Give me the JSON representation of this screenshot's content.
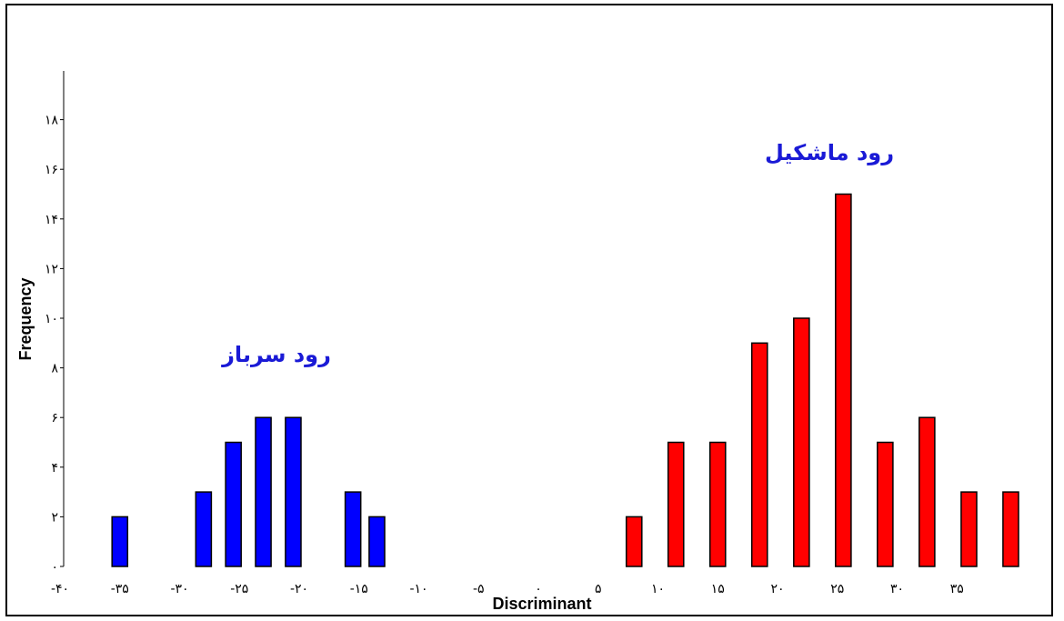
{
  "chart_data": {
    "type": "bar",
    "xlabel": "Discriminant",
    "ylabel": "Frequency",
    "xlim": [
      -40,
      40
    ],
    "ylim": [
      0,
      20
    ],
    "grid": false,
    "x_ticks": [
      -40,
      -35,
      -30,
      -25,
      -20,
      -15,
      -10,
      -5,
      0,
      5,
      10,
      15,
      20,
      25,
      30,
      35
    ],
    "x_tick_labels": [
      "-۴۰",
      "-۳۵",
      "-۳۰",
      "-۲۵",
      "-۲۰",
      "-۱۵",
      "-۱۰",
      "-۵",
      "۰",
      "۵",
      "۱۰",
      "۱۵",
      "۲۰",
      "۲۵",
      "۳۰",
      "۳۵"
    ],
    "y_ticks": [
      0,
      2,
      4,
      6,
      8,
      10,
      12,
      14,
      16,
      18
    ],
    "y_tick_labels": [
      "۰",
      "۲",
      "۴",
      "۶",
      "۸",
      "۱۰",
      "۱۲",
      "۱۴",
      "۱۶",
      "۱۸"
    ],
    "bar_width": 1.3,
    "series": [
      {
        "name": "رود سرباز",
        "color": "#0000ff",
        "x": [
          -35,
          -28,
          -25.5,
          -23,
          -20.5,
          -15.5,
          -13.5
        ],
        "values": [
          2,
          3,
          5,
          6,
          6,
          3,
          2
        ]
      },
      {
        "name": "رود ماشکیل",
        "color": "#ff0000",
        "x": [
          8,
          11.5,
          15,
          18.5,
          22,
          25.5,
          29,
          32.5,
          36,
          39.5
        ],
        "values": [
          2,
          5,
          5,
          9,
          10,
          15,
          5,
          6,
          3,
          3
        ]
      }
    ]
  }
}
